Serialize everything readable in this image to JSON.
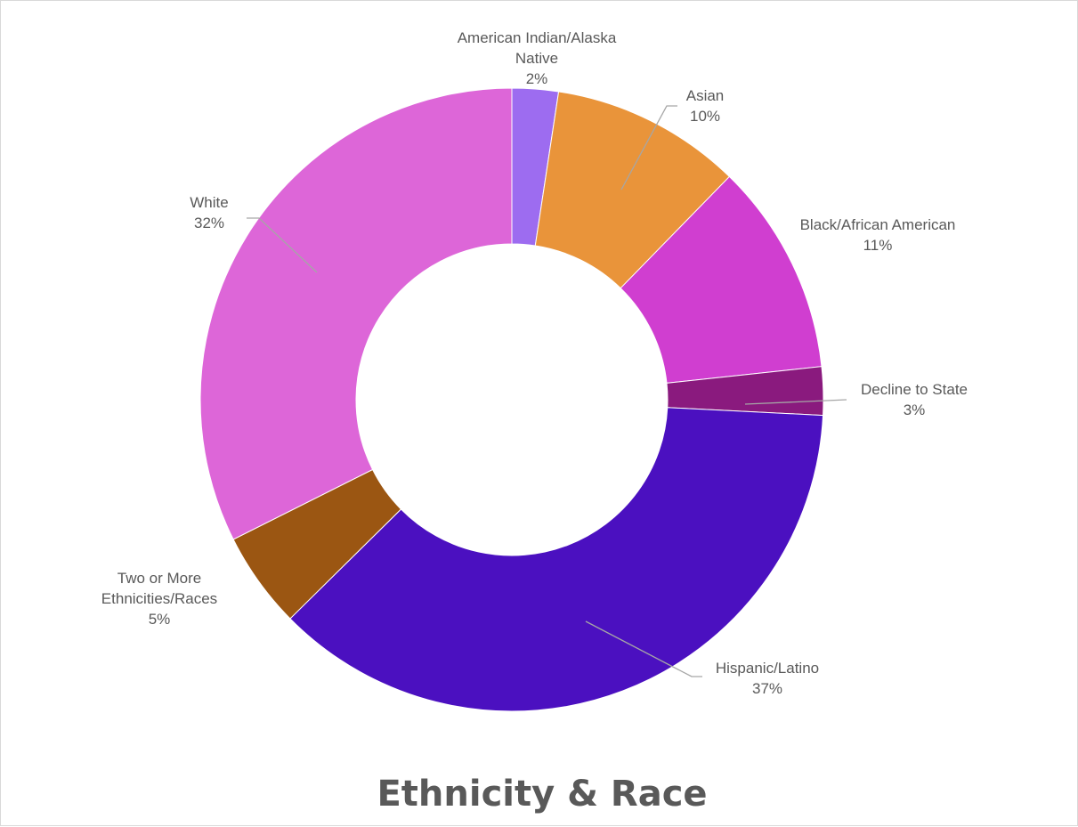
{
  "chart_data": {
    "type": "pie",
    "title": "Ethnicity & Race",
    "categories": [
      "American Indian/Alaska Native",
      "Asian",
      "Black/African American",
      "Decline to State",
      "Hispanic/Latino",
      "Two or More Ethnicities/Races",
      "White"
    ],
    "values": [
      2.4,
      9.9,
      11.0,
      2.5,
      36.8,
      5.0,
      32.4
    ],
    "data_labels": [
      "2%",
      "10%",
      "11%",
      "3%",
      "37%",
      "5%",
      "32%"
    ],
    "colors": [
      "#9d6cf0",
      "#e9943a",
      "#d03ed0",
      "#8a1a7e",
      "#4b10c0",
      "#9b5612",
      "#dd66d8"
    ],
    "legend": "none"
  }
}
